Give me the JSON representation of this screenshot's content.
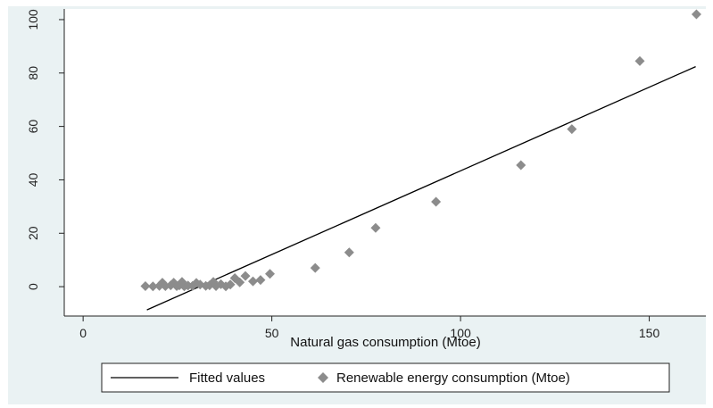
{
  "chart_data": {
    "type": "scatter",
    "xlabel": "Natural gas consumption (Mtoe)",
    "ylabel": "",
    "xlim": [
      -5,
      165
    ],
    "ylim": [
      -11,
      104
    ],
    "x_ticks": [
      0,
      50,
      100,
      150
    ],
    "y_ticks": [
      0,
      20,
      40,
      60,
      80,
      100
    ],
    "grid": false,
    "legend_position": "bottom",
    "series": [
      {
        "name": "Fitted values",
        "kind": "line",
        "color": "#000000",
        "points": [
          [
            16.9,
            -8.7
          ],
          [
            162.3,
            82.4
          ]
        ]
      },
      {
        "name": "Renewable energy consumption (Mtoe)",
        "kind": "scatter",
        "marker": "diamond",
        "color": "#8c8c8c",
        "points": [
          [
            16.5,
            0.2
          ],
          [
            18.5,
            0.1
          ],
          [
            20.2,
            0.3
          ],
          [
            21.0,
            1.5
          ],
          [
            21.8,
            0.2
          ],
          [
            23.2,
            0.5
          ],
          [
            24.0,
            1.5
          ],
          [
            24.8,
            0.2
          ],
          [
            25.5,
            0.5
          ],
          [
            26.2,
            1.8
          ],
          [
            26.8,
            0.1
          ],
          [
            27.8,
            0.4
          ],
          [
            29.0,
            0.3
          ],
          [
            30.0,
            1.4
          ],
          [
            31.0,
            0.8
          ],
          [
            32.5,
            0.3
          ],
          [
            33.5,
            0.5
          ],
          [
            34.5,
            1.8
          ],
          [
            35.2,
            0.2
          ],
          [
            36.5,
            0.9
          ],
          [
            37.8,
            0.1
          ],
          [
            39.0,
            0.8
          ],
          [
            40.2,
            3.2
          ],
          [
            41.5,
            1.6
          ],
          [
            43.0,
            4.0
          ],
          [
            45.0,
            2.0
          ],
          [
            47.0,
            2.5
          ],
          [
            49.5,
            4.8
          ],
          [
            61.5,
            7.0
          ],
          [
            70.5,
            12.8
          ],
          [
            77.5,
            22.0
          ],
          [
            93.5,
            31.8
          ],
          [
            116.0,
            45.5
          ],
          [
            129.5,
            59.0
          ],
          [
            147.5,
            84.5
          ],
          [
            162.5,
            102.0
          ]
        ]
      }
    ]
  }
}
